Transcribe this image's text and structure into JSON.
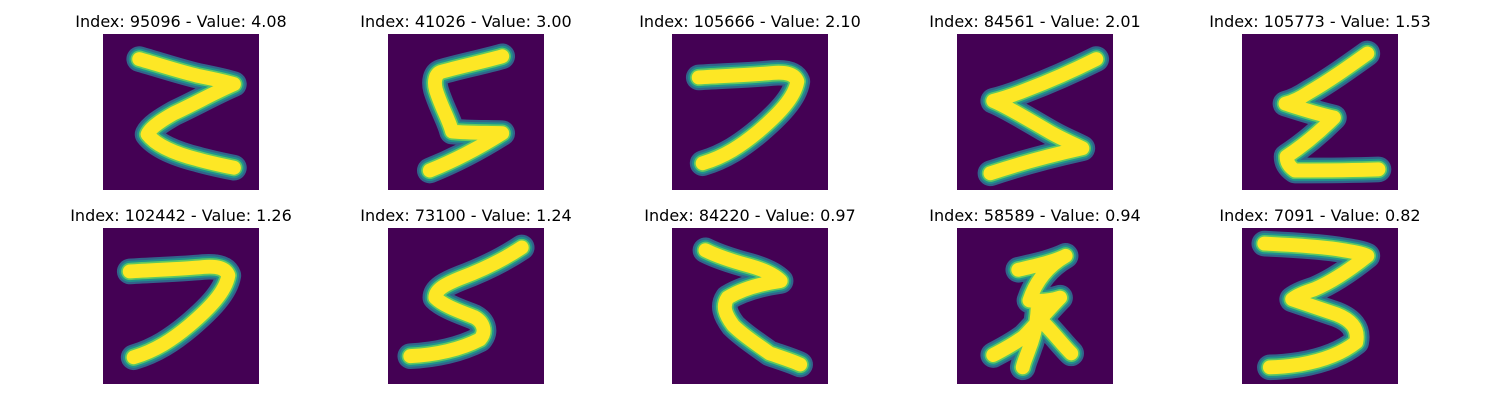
{
  "colors": {
    "background": "#440154",
    "halo_outer": "#31688e",
    "halo_mid": "#21918c",
    "halo_inner": "#5ec962",
    "stroke": "#fde725"
  },
  "panels": [
    {
      "title": "Index: 95096 - Value: 4.08",
      "glyph": "zigzag-z"
    },
    {
      "title": "Index: 41026 - Value: 3.00",
      "glyph": "s-shape"
    },
    {
      "title": "Index: 105666 - Value: 2.10",
      "glyph": "seven-curve"
    },
    {
      "title": "Index: 84561 - Value: 2.01",
      "glyph": "zigzag-angled"
    },
    {
      "title": "Index: 105773 - Value: 1.53",
      "glyph": "zigzag-sigma"
    },
    {
      "title": "Index: 102442 - Value: 1.26",
      "glyph": "seven-curve"
    },
    {
      "title": "Index: 73100 - Value: 1.24",
      "glyph": "five"
    },
    {
      "title": "Index: 84220 - Value: 0.97",
      "glyph": "zigzag-reversed"
    },
    {
      "title": "Index: 58589 - Value: 0.94",
      "glyph": "f-shape"
    },
    {
      "title": "Index: 7091 - Value: 0.82",
      "glyph": "three"
    }
  ]
}
